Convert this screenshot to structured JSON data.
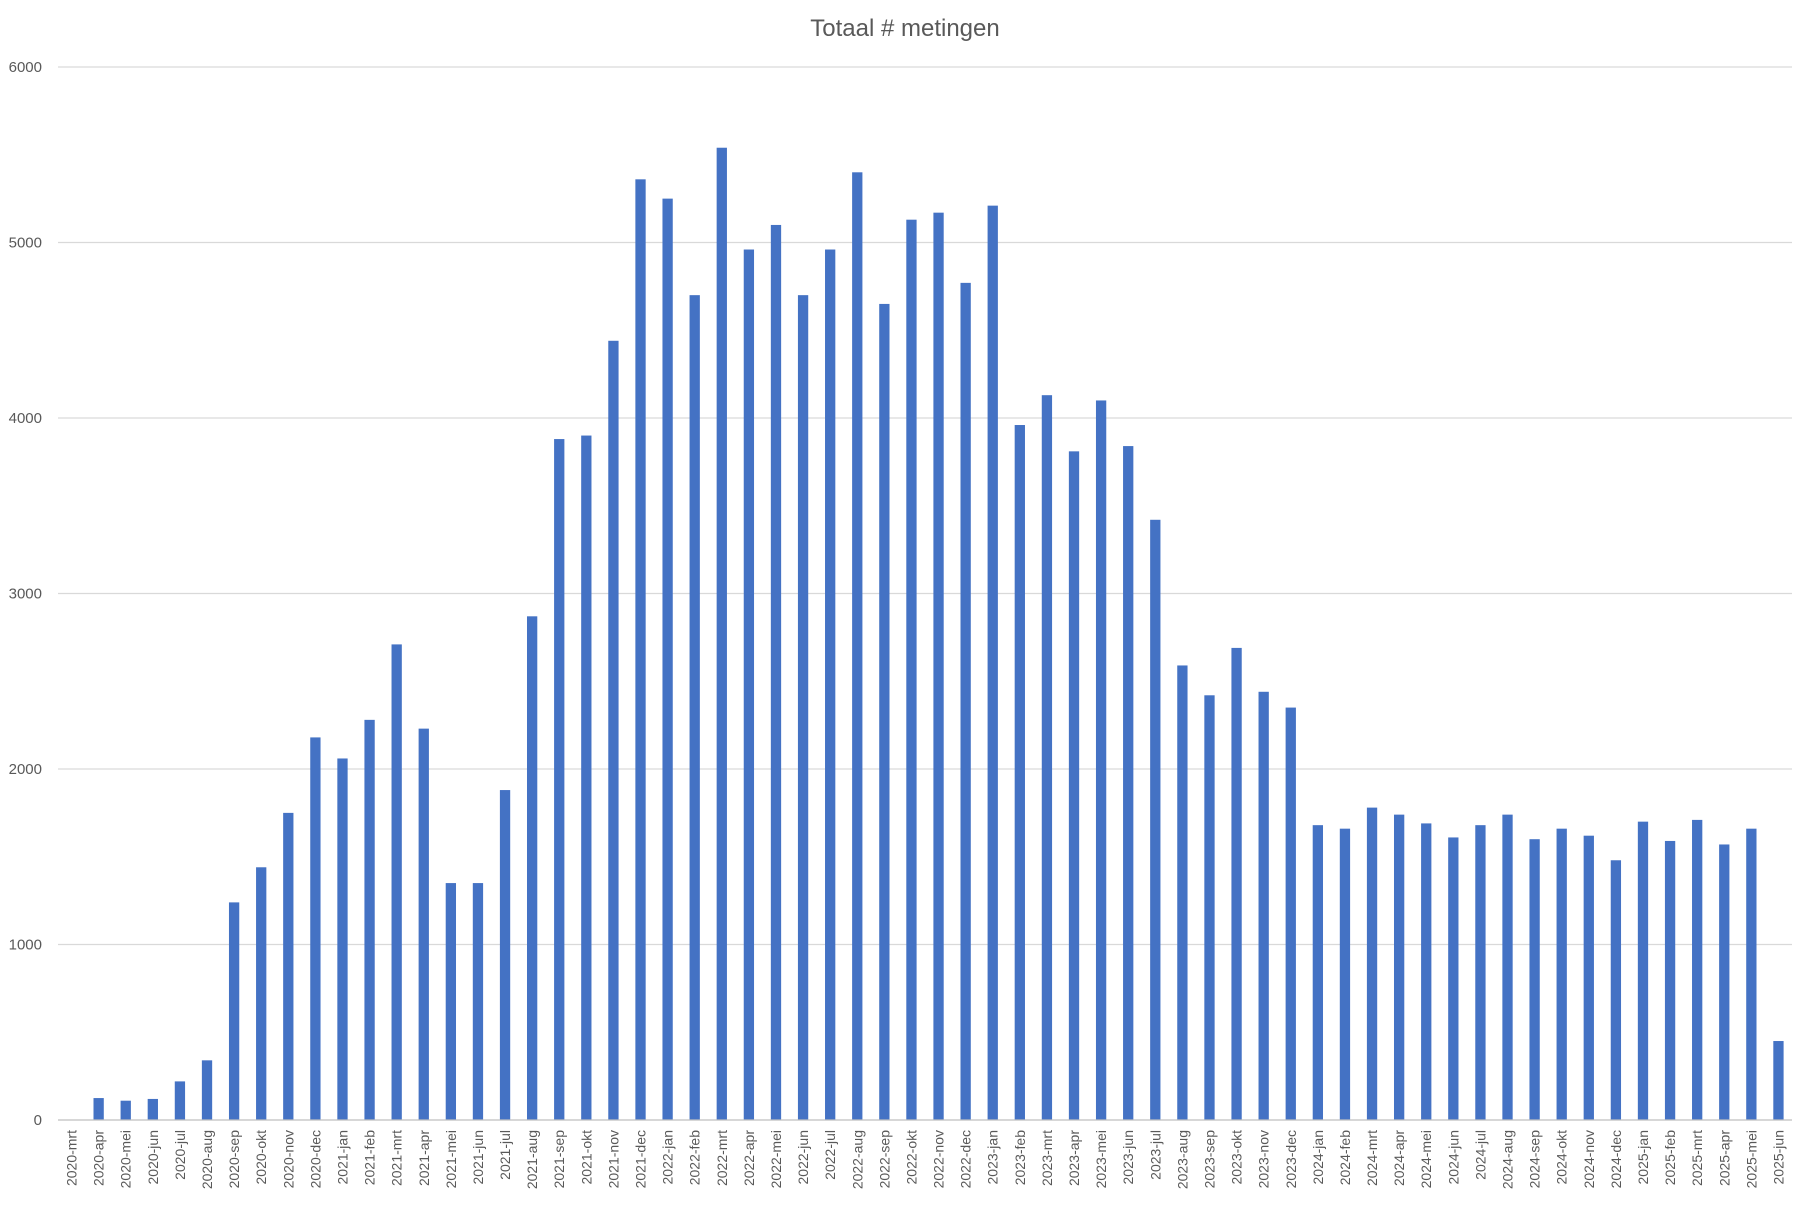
{
  "chart_data": {
    "type": "bar",
    "title": "Totaal # metingen",
    "xlabel": "",
    "ylabel": "",
    "ylim": [
      0,
      6000
    ],
    "yticks": [
      0,
      1000,
      2000,
      3000,
      4000,
      5000,
      6000
    ],
    "grid": true,
    "legend": "none",
    "colors": {
      "bar": "#4472C4",
      "grid": "#D9D9D9",
      "axis": "#BFBFBF",
      "text": "#595959"
    },
    "categories": [
      "2020-mrt",
      "2020-apr",
      "2020-mei",
      "2020-jun",
      "2020-jul",
      "2020-aug",
      "2020-sep",
      "2020-okt",
      "2020-nov",
      "2020-dec",
      "2021-jan",
      "2021-feb",
      "2021-mrt",
      "2021-apr",
      "2021-mei",
      "2021-jun",
      "2021-jul",
      "2021-aug",
      "2021-sep",
      "2021-okt",
      "2021-nov",
      "2021-dec",
      "2022-jan",
      "2022-feb",
      "2022-mrt",
      "2022-apr",
      "2022-mei",
      "2022-jun",
      "2022-jul",
      "2022-aug",
      "2022-sep",
      "2022-okt",
      "2022-nov",
      "2022-dec",
      "2023-jan",
      "2023-feb",
      "2023-mrt",
      "2023-apr",
      "2023-mei",
      "2023-jun",
      "2023-jul",
      "2023-aug",
      "2023-sep",
      "2023-okt",
      "2023-nov",
      "2023-dec",
      "2024-jan",
      "2024-feb",
      "2024-mrt",
      "2024-apr",
      "2024-mei",
      "2024-jun",
      "2024-jul",
      "2024-aug",
      "2024-sep",
      "2024-okt",
      "2024-nov",
      "2024-dec",
      "2025-jan",
      "2025-feb",
      "2025-mrt",
      "2025-apr",
      "2025-mei",
      "2025-jun"
    ],
    "values": [
      0,
      125,
      110,
      120,
      220,
      340,
      1240,
      1440,
      1750,
      2180,
      2060,
      2280,
      2710,
      2230,
      1350,
      1350,
      1880,
      2870,
      3880,
      3900,
      4440,
      5360,
      5250,
      4700,
      5540,
      4960,
      5100,
      4700,
      4960,
      5400,
      4650,
      5130,
      5170,
      4770,
      5210,
      3960,
      4130,
      3810,
      4100,
      3840,
      3420,
      2590,
      2420,
      2690,
      2440,
      2350,
      1680,
      1660,
      1780,
      1740,
      1690,
      1610,
      1680,
      1740,
      1600,
      1660,
      1620,
      1480,
      1700,
      1590,
      1710,
      1570,
      1660,
      450
    ]
  }
}
